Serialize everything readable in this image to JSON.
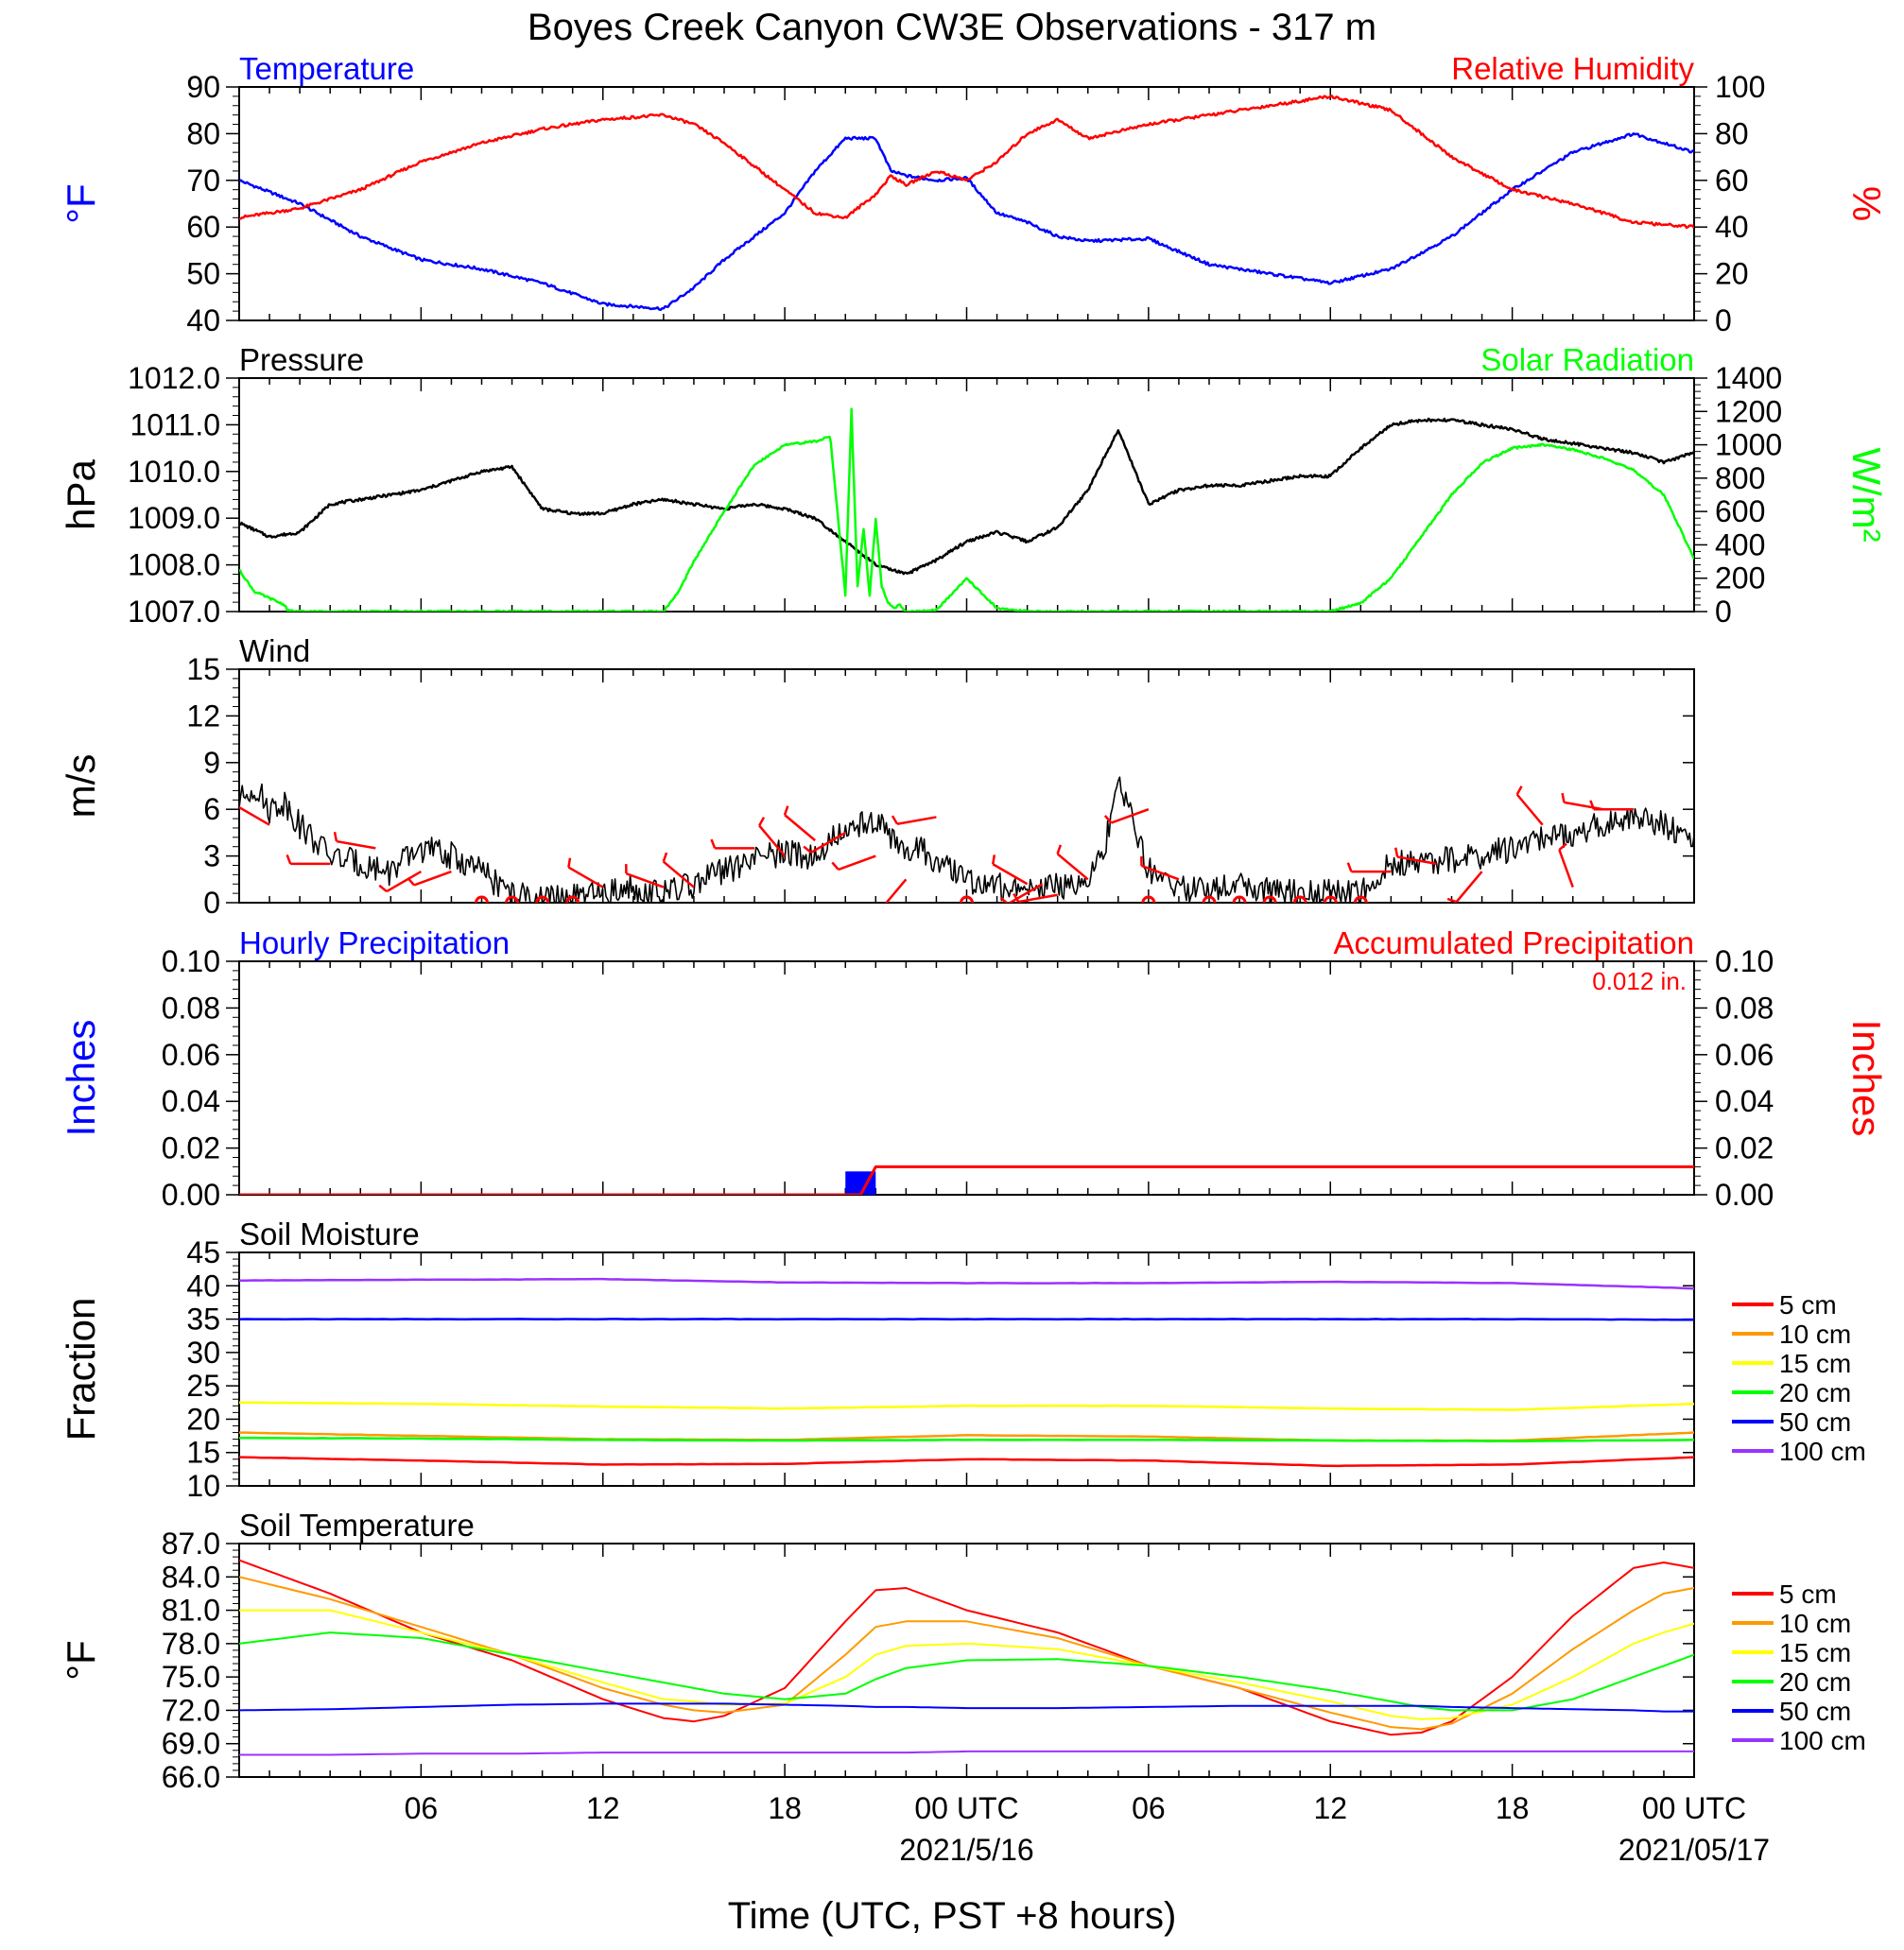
{
  "title": "Boyes Creek Canyon CW3E Observations - 317 m",
  "xlabel": "Time (UTC, PST +8 hours)",
  "x_ticks": [
    "06",
    "12",
    "18",
    "00 UTC",
    "06",
    "12",
    "18",
    "00 UTC"
  ],
  "x_dates": [
    "2021/5/16",
    "2021/05/17"
  ],
  "colors": {
    "temperature": "#0000ff",
    "humidity": "#ff0000",
    "pressure": "#000000",
    "solar": "#00ff00",
    "wind": "#000000",
    "barb": "#ff0000",
    "hourly_precip": "#0000ff",
    "accum_precip": "#ff0000",
    "depths": [
      "#ff0000",
      "#ff9900",
      "#ffff00",
      "#00ff00",
      "#0000ff",
      "#9933ff"
    ]
  },
  "chart_data": [
    {
      "type": "line",
      "panel": "temperature-humidity",
      "left_title": "Temperature",
      "right_title": "Relative Humidity",
      "ylabel_left": "°F",
      "ylabel_right": "%",
      "ylim_left": [
        40,
        90
      ],
      "ylim_right": [
        0,
        100
      ],
      "yticks_left": [
        "40",
        "50",
        "60",
        "70",
        "80",
        "90"
      ],
      "yticks_right": [
        "0",
        "20",
        "40",
        "60",
        "80",
        "100"
      ],
      "x_hours": [
        0,
        2,
        4,
        6,
        8,
        10,
        12,
        14,
        15,
        16,
        18,
        19,
        20,
        21,
        21.5,
        22,
        23,
        24,
        25,
        26,
        27,
        28,
        30,
        32,
        34,
        36,
        38,
        40,
        42,
        44,
        46,
        48
      ],
      "series": [
        {
          "name": "Temperature",
          "axis": "left",
          "values": [
            70,
            65,
            58,
            53,
            51,
            48,
            43.5,
            42.5,
            47,
            53,
            63,
            72,
            79,
            79,
            72,
            71,
            70,
            70.5,
            63,
            61,
            58,
            57,
            57.5,
            52,
            50,
            48,
            51,
            58,
            68,
            76,
            80,
            76
          ]
        },
        {
          "name": "Relative Humidity",
          "axis": "right",
          "values": [
            44,
            48,
            56,
            68,
            76,
            82,
            86,
            88,
            84,
            76,
            56,
            46,
            44,
            54,
            62,
            58,
            64,
            60,
            68,
            80,
            86,
            78,
            84,
            88,
            92,
            96,
            90,
            70,
            56,
            50,
            42,
            40
          ]
        }
      ]
    },
    {
      "type": "line",
      "panel": "pressure-solar",
      "left_title": "Pressure",
      "right_title": "Solar Radiation",
      "ylabel_left": "hPa",
      "ylabel_right": "W/m²",
      "ylim_left": [
        1007.0,
        1012.0
      ],
      "ylim_right": [
        0,
        1400
      ],
      "yticks_left": [
        "1007.0",
        "1008.0",
        "1009.0",
        "1010.0",
        "1011.0",
        "1012.0"
      ],
      "yticks_right": [
        "0",
        "200",
        "400",
        "600",
        "800",
        "1000",
        "1200",
        "1400"
      ],
      "series": [
        {
          "name": "Pressure",
          "axis": "left",
          "x": [
            0,
            1,
            2,
            3,
            4,
            5,
            6,
            7,
            8,
            9,
            10,
            11,
            12,
            13,
            14,
            15,
            16,
            17,
            18,
            19,
            20,
            21,
            22,
            23,
            24,
            25,
            26,
            27,
            28,
            29,
            30,
            31,
            32,
            33,
            34,
            35,
            36,
            37,
            38,
            39,
            40,
            41,
            42,
            43,
            44,
            45,
            46,
            47,
            48
          ],
          "values": [
            1008.9,
            1008.6,
            1008.7,
            1009.3,
            1009.4,
            1009.5,
            1009.6,
            1009.8,
            1010.0,
            1010.1,
            1009.2,
            1009.1,
            1009.1,
            1009.3,
            1009.4,
            1009.3,
            1009.2,
            1009.3,
            1009.2,
            1009.0,
            1008.5,
            1008.0,
            1007.8,
            1008.1,
            1008.5,
            1008.7,
            1008.5,
            1008.8,
            1009.6,
            1010.9,
            1009.3,
            1009.6,
            1009.7,
            1009.7,
            1009.8,
            1009.9,
            1009.9,
            1010.5,
            1011.0,
            1011.1,
            1011.1,
            1011.0,
            1010.9,
            1010.7,
            1010.6,
            1010.5,
            1010.4,
            1010.2,
            1010.4
          ]
        },
        {
          "name": "Solar Radiation",
          "axis": "right",
          "x": [
            0,
            0.5,
            1,
            1.5,
            1.6,
            2,
            14,
            14.5,
            15,
            16,
            17,
            18,
            19,
            19.5,
            20,
            20.2,
            20.4,
            20.6,
            20.8,
            21,
            21.2,
            21.4,
            21.6,
            21.8,
            22,
            22.5,
            23,
            24,
            25,
            26,
            27,
            28,
            36,
            37,
            38,
            39,
            40,
            41,
            42,
            43,
            44,
            45,
            46,
            47,
            48
          ],
          "values": [
            250,
            120,
            80,
            40,
            5,
            0,
            0,
            120,
            300,
            600,
            880,
            1000,
            1020,
            1050,
            100,
            1210,
            150,
            500,
            100,
            550,
            150,
            60,
            20,
            40,
            0,
            0,
            10,
            200,
            20,
            0,
            0,
            0,
            0,
            50,
            200,
            450,
            700,
            890,
            980,
            1000,
            970,
            920,
            850,
            700,
            320
          ]
        }
      ]
    },
    {
      "type": "line",
      "panel": "wind",
      "left_title": "Wind",
      "ylabel_left": "m/s",
      "ylim_left": [
        0,
        15
      ],
      "yticks_left": [
        "0",
        "3",
        "6",
        "9",
        "12",
        "15"
      ],
      "series": [
        {
          "name": "Wind",
          "axis": "left",
          "x": [
            0,
            0.5,
            1,
            1.5,
            2,
            3,
            4,
            5,
            6,
            7,
            8,
            9,
            10,
            11,
            12,
            13,
            14,
            15,
            16,
            17,
            18,
            19,
            19.5,
            20,
            21,
            22,
            22.5,
            23,
            24,
            25,
            26,
            27,
            28,
            28.5,
            29,
            30,
            31,
            32,
            33,
            34,
            35,
            36,
            37,
            38,
            39,
            40,
            41,
            42,
            43,
            44,
            45,
            46,
            47,
            48
          ],
          "values": [
            6.5,
            7.5,
            6.0,
            6.5,
            5.0,
            3.0,
            2.5,
            2.0,
            3.5,
            3.0,
            2.0,
            0.5,
            0.2,
            0.3,
            0.5,
            1.0,
            0.5,
            1.2,
            2.0,
            2.8,
            3.2,
            3.0,
            4.0,
            4.5,
            5.5,
            3.0,
            3.5,
            2.5,
            1.5,
            1.0,
            1.2,
            1.0,
            1.5,
            3.0,
            8.0,
            2.0,
            1.0,
            0.8,
            1.2,
            0.7,
            0.6,
            0.6,
            0.5,
            2.5,
            2.5,
            2.8,
            3.0,
            3.5,
            4.0,
            4.5,
            5.0,
            5.5,
            5.0,
            4.0
          ]
        }
      ],
      "calm_markers_hours": [
        8,
        9,
        10,
        11,
        24,
        30,
        32,
        33,
        34,
        35,
        36,
        37
      ],
      "barbs": [
        {
          "hour": 1,
          "speed": 5.0,
          "dir": 300
        },
        {
          "hour": 3,
          "speed": 2.5,
          "dir": 270
        },
        {
          "hour": 4.5,
          "speed": 3.5,
          "dir": 280
        },
        {
          "hour": 6,
          "speed": 2.0,
          "dir": 240
        },
        {
          "hour": 7,
          "speed": 2.0,
          "dir": 250
        },
        {
          "hour": 12,
          "speed": 1.0,
          "dir": 300
        },
        {
          "hour": 14,
          "speed": 1.0,
          "dir": 290
        },
        {
          "hour": 15,
          "speed": 1.0,
          "dir": 310
        },
        {
          "hour": 17,
          "speed": 3.5,
          "dir": 270
        },
        {
          "hour": 18,
          "speed": 3.0,
          "dir": 320
        },
        {
          "hour": 19,
          "speed": 4.0,
          "dir": 310
        },
        {
          "hour": 20,
          "speed": 4.5,
          "dir": 240
        },
        {
          "hour": 21,
          "speed": 3.0,
          "dir": 250
        },
        {
          "hour": 22,
          "speed": 1.5,
          "dir": 220
        },
        {
          "hour": 23,
          "speed": 5.5,
          "dir": 260
        },
        {
          "hour": 26,
          "speed": 1.2,
          "dir": 300
        },
        {
          "hour": 26.5,
          "speed": 1.2,
          "dir": 240
        },
        {
          "hour": 27,
          "speed": 0.5,
          "dir": 260
        },
        {
          "hour": 28,
          "speed": 1.5,
          "dir": 310
        },
        {
          "hour": 30,
          "speed": 6.0,
          "dir": 250
        },
        {
          "hour": 31,
          "speed": 1.5,
          "dir": 290
        },
        {
          "hour": 38,
          "speed": 2.0,
          "dir": 270
        },
        {
          "hour": 39.5,
          "speed": 2.5,
          "dir": 280
        },
        {
          "hour": 41,
          "speed": 2.0,
          "dir": 220
        },
        {
          "hour": 43,
          "speed": 5.0,
          "dir": 320
        },
        {
          "hour": 44,
          "speed": 1.0,
          "dir": 340
        },
        {
          "hour": 45,
          "speed": 6.0,
          "dir": 280
        },
        {
          "hour": 46,
          "speed": 6.0,
          "dir": 270
        }
      ]
    },
    {
      "type": "bar",
      "panel": "precipitation",
      "left_title": "Hourly Precipitation",
      "right_title": "Accumulated Precipitation",
      "total_label": "0.012 in.",
      "ylabel_left": "Inches",
      "ylabel_right": "Inches",
      "ylim_left": [
        0,
        0.1
      ],
      "ylim_right": [
        0,
        0.1
      ],
      "yticks_left": [
        "0.00",
        "0.02",
        "0.04",
        "0.06",
        "0.08",
        "0.10"
      ],
      "yticks_right": [
        "0.00",
        "0.02",
        "0.04",
        "0.06",
        "0.08",
        "0.10"
      ],
      "series": [
        {
          "name": "Hourly Precipitation",
          "axis": "left",
          "x": [
            20.5
          ],
          "values": [
            0.01
          ]
        },
        {
          "name": "Accumulated Precipitation",
          "axis": "right",
          "x": [
            0,
            20.5,
            21,
            48
          ],
          "values": [
            0,
            0,
            0.012,
            0.012
          ]
        }
      ]
    },
    {
      "type": "line",
      "panel": "soil-moisture",
      "left_title": "Soil Moisture",
      "ylabel_left": "Fraction",
      "ylim_left": [
        10,
        45
      ],
      "yticks_left": [
        "10",
        "15",
        "20",
        "25",
        "30",
        "35",
        "40",
        "45"
      ],
      "legend": [
        "5 cm",
        "10 cm",
        "15 cm",
        "20 cm",
        "50 cm",
        "100 cm"
      ],
      "x": [
        0,
        6,
        12,
        18,
        24,
        30,
        36,
        42,
        48
      ],
      "series": [
        {
          "name": "5 cm",
          "values": [
            14.3,
            13.8,
            13.2,
            13.3,
            14.0,
            13.8,
            13.0,
            13.2,
            14.3
          ]
        },
        {
          "name": "10 cm",
          "values": [
            18.0,
            17.5,
            17.0,
            16.9,
            17.6,
            17.4,
            16.8,
            16.8,
            18.0
          ]
        },
        {
          "name": "15 cm",
          "values": [
            22.5,
            22.3,
            21.9,
            21.6,
            22.0,
            22.0,
            21.6,
            21.4,
            22.3
          ]
        },
        {
          "name": "20 cm",
          "values": [
            17.2,
            17.1,
            16.9,
            16.8,
            16.9,
            16.9,
            16.8,
            16.7,
            16.9
          ]
        },
        {
          "name": "50 cm",
          "values": [
            35.0,
            35.0,
            35.0,
            35.0,
            35.0,
            35.0,
            35.0,
            35.0,
            34.9
          ]
        },
        {
          "name": "100 cm",
          "values": [
            40.8,
            40.9,
            41.0,
            40.5,
            40.4,
            40.4,
            40.6,
            40.4,
            39.6
          ]
        }
      ]
    },
    {
      "type": "line",
      "panel": "soil-temperature",
      "left_title": "Soil Temperature",
      "ylabel_left": "°F",
      "ylim_left": [
        66,
        87
      ],
      "yticks_left": [
        "66.0",
        "69.0",
        "72.0",
        "75.0",
        "78.0",
        "81.0",
        "84.0",
        "87.0"
      ],
      "legend": [
        "5 cm",
        "10 cm",
        "15 cm",
        "20 cm",
        "50 cm",
        "100 cm"
      ],
      "x": [
        0,
        3,
        6,
        9,
        12,
        14,
        15,
        16,
        18,
        20,
        21,
        22,
        24,
        27,
        30,
        33,
        36,
        38,
        39,
        40,
        42,
        44,
        46,
        47,
        48
      ],
      "series": [
        {
          "name": "5 cm",
          "values": [
            85.5,
            82.5,
            79.0,
            76.5,
            73.0,
            71.3,
            71.0,
            71.5,
            74.0,
            80.0,
            82.8,
            83.0,
            81.0,
            79.0,
            76.0,
            74.0,
            71.0,
            69.8,
            70.0,
            71.0,
            75.0,
            80.5,
            84.8,
            85.3,
            84.8
          ]
        },
        {
          "name": "10 cm",
          "values": [
            84.0,
            82.0,
            79.5,
            77.0,
            74.0,
            72.5,
            72.0,
            71.8,
            72.5,
            77.0,
            79.5,
            80.0,
            80.0,
            78.5,
            76.0,
            74.0,
            71.8,
            70.5,
            70.3,
            70.8,
            73.5,
            77.5,
            81.0,
            82.5,
            83.0
          ]
        },
        {
          "name": "15 cm",
          "values": [
            81.0,
            81.0,
            79.0,
            77.0,
            74.5,
            73.0,
            72.8,
            72.5,
            72.6,
            75.0,
            77.0,
            77.8,
            78.0,
            77.5,
            76.0,
            74.5,
            72.8,
            71.5,
            71.2,
            71.3,
            72.5,
            75.0,
            78.0,
            79.0,
            79.8
          ]
        },
        {
          "name": "20 cm",
          "values": [
            78.0,
            79.0,
            78.5,
            77.0,
            75.5,
            74.5,
            74.0,
            73.5,
            73.0,
            73.5,
            74.8,
            75.8,
            76.5,
            76.6,
            76.0,
            75.0,
            73.8,
            72.8,
            72.3,
            72.0,
            72.0,
            73.0,
            75.0,
            76.0,
            77.0
          ]
        },
        {
          "name": "50 cm",
          "values": [
            72.0,
            72.1,
            72.3,
            72.5,
            72.6,
            72.6,
            72.6,
            72.6,
            72.5,
            72.4,
            72.3,
            72.3,
            72.2,
            72.2,
            72.3,
            72.4,
            72.4,
            72.4,
            72.4,
            72.3,
            72.2,
            72.1,
            72.0,
            71.9,
            71.9
          ]
        },
        {
          "name": "100 cm",
          "values": [
            68.0,
            68.0,
            68.1,
            68.1,
            68.2,
            68.2,
            68.2,
            68.2,
            68.2,
            68.2,
            68.2,
            68.2,
            68.3,
            68.3,
            68.3,
            68.3,
            68.3,
            68.3,
            68.3,
            68.3,
            68.3,
            68.3,
            68.3,
            68.3,
            68.3
          ]
        }
      ]
    }
  ]
}
